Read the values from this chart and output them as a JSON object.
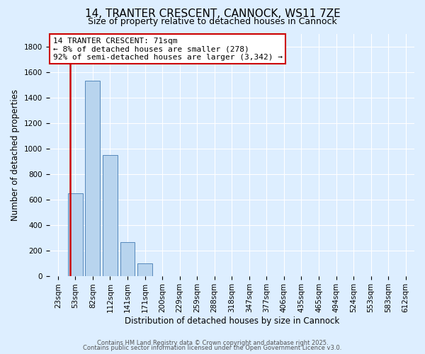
{
  "title": "14, TRANTER CRESCENT, CANNOCK, WS11 7ZE",
  "subtitle": "Size of property relative to detached houses in Cannock",
  "xlabel": "Distribution of detached houses by size in Cannock",
  "ylabel": "Number of detached properties",
  "categories": [
    "23sqm",
    "53sqm",
    "82sqm",
    "112sqm",
    "141sqm",
    "171sqm",
    "200sqm",
    "229sqm",
    "259sqm",
    "288sqm",
    "318sqm",
    "347sqm",
    "377sqm",
    "406sqm",
    "435sqm",
    "465sqm",
    "494sqm",
    "524sqm",
    "553sqm",
    "583sqm",
    "612sqm"
  ],
  "values": [
    0,
    650,
    1530,
    950,
    265,
    100,
    0,
    0,
    0,
    0,
    0,
    0,
    0,
    0,
    0,
    0,
    0,
    0,
    0,
    0,
    0
  ],
  "bar_color": "#b8d4ee",
  "bar_edgecolor": "#5588bb",
  "vline_color": "#cc0000",
  "vline_xindex": 0.72,
  "annotation_line1": "14 TRANTER CRESCENT: 71sqm",
  "annotation_line2": "← 8% of detached houses are smaller (278)",
  "annotation_line3": "92% of semi-detached houses are larger (3,342) →",
  "ylim": [
    0,
    1900
  ],
  "yticks": [
    0,
    200,
    400,
    600,
    800,
    1000,
    1200,
    1400,
    1600,
    1800
  ],
  "background_color": "#ddeeff",
  "grid_color": "#ffffff",
  "footer1": "Contains HM Land Registry data © Crown copyright and database right 2025.",
  "footer2": "Contains public sector information licensed under the Open Government Licence v3.0.",
  "title_fontsize": 11,
  "subtitle_fontsize": 9,
  "annotation_fontsize": 8,
  "annot_box_edgecolor": "#cc0000",
  "tick_fontsize": 7.5,
  "ylabel_fontsize": 8.5,
  "xlabel_fontsize": 8.5
}
